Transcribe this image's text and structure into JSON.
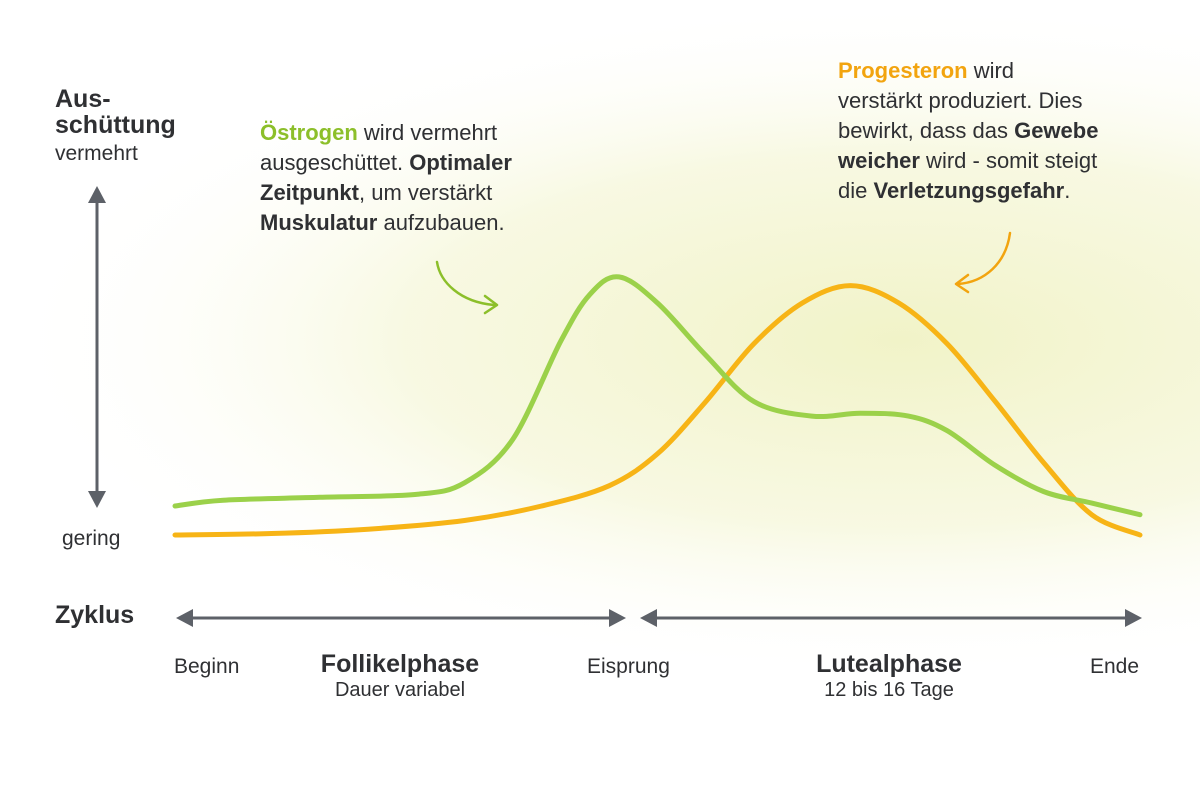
{
  "y_axis": {
    "title_line1": "Aus-",
    "title_line2": "schüttung",
    "high_label": "vermehrt",
    "low_label": "gering"
  },
  "x_axis": {
    "title": "Zyklus",
    "start_label": "Beginn",
    "ovulation_label": "Eisprung",
    "end_label": "Ende"
  },
  "phases": [
    {
      "name": "Follikelphase",
      "sub": "Dauer variabel"
    },
    {
      "name": "Lutealphase",
      "sub": "12 bis 16 Tage"
    }
  ],
  "annotations": {
    "estrogen": {
      "l1a": "Östrogen",
      "l1b": " wird vermehrt",
      "l2a": "ausgeschüttet. ",
      "l2b": "Optimaler",
      "l3a": "Zeitpunkt",
      "l3b": ", um verstärkt",
      "l4a": "Muskulatur",
      "l4b": " aufzubauen."
    },
    "progesterone": {
      "l1a": "Progesteron",
      "l1b": " wird",
      "l2": "verstärkt produziert. Dies",
      "l3a": "bewirkt, dass das ",
      "l3b": "Gewebe",
      "l4a": "weicher",
      "l4b": " wird - somit steigt",
      "l5a": "die ",
      "l5b": "Verletzungsgefahr",
      "l5c": "."
    }
  },
  "colors": {
    "estrogen": "#9bd14a",
    "progesterone": "#f7b416",
    "axis": "#5d6168",
    "background_glow": "#f1f3c8"
  },
  "chart_data": {
    "type": "line",
    "x_domain": [
      0,
      100
    ],
    "y_domain": [
      0,
      100
    ],
    "ovulation_x": 46,
    "series": [
      {
        "name": "Östrogen",
        "color": "#9bd14a",
        "points": [
          [
            0,
            10
          ],
          [
            5,
            12
          ],
          [
            15,
            13
          ],
          [
            25,
            14
          ],
          [
            30,
            18
          ],
          [
            35,
            33
          ],
          [
            40,
            67
          ],
          [
            43,
            83
          ],
          [
            46,
            89
          ],
          [
            50,
            80
          ],
          [
            55,
            62
          ],
          [
            60,
            46
          ],
          [
            66,
            41
          ],
          [
            71,
            42
          ],
          [
            76,
            41
          ],
          [
            80,
            36
          ],
          [
            85,
            24
          ],
          [
            90,
            15
          ],
          [
            95,
            11
          ],
          [
            100,
            7
          ]
        ]
      },
      {
        "name": "Progesteron",
        "color": "#f7b416",
        "points": [
          [
            0,
            0
          ],
          [
            10,
            0.5
          ],
          [
            20,
            2
          ],
          [
            30,
            5
          ],
          [
            38,
            10
          ],
          [
            45,
            17
          ],
          [
            50,
            28
          ],
          [
            55,
            46
          ],
          [
            60,
            66
          ],
          [
            65,
            80
          ],
          [
            70,
            86
          ],
          [
            75,
            80
          ],
          [
            80,
            66
          ],
          [
            85,
            46
          ],
          [
            90,
            25
          ],
          [
            95,
            7
          ],
          [
            100,
            0
          ]
        ]
      }
    ]
  }
}
